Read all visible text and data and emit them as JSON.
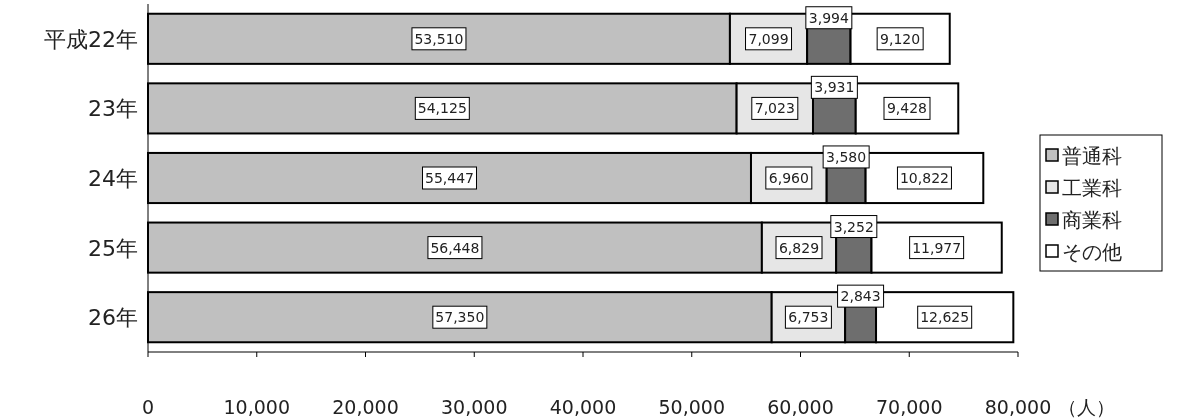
{
  "chart_data": {
    "type": "bar",
    "orientation": "horizontal",
    "stacked": true,
    "legend": "right",
    "xlabel": "（人）",
    "categories": [
      "平成22年",
      "23年",
      "24年",
      "25年",
      "26年"
    ],
    "series": [
      {
        "name": "普通科",
        "color": "#c0c0c0",
        "values": [
          53510,
          54125,
          55447,
          56448,
          57350
        ],
        "value_labels": [
          "53,510",
          "54,125",
          "55,447",
          "56,448",
          "57,350"
        ]
      },
      {
        "name": "工業科",
        "color": "#e6e6e6",
        "values": [
          7099,
          7023,
          6960,
          6829,
          6753
        ],
        "value_labels": [
          "7,099",
          "7,023",
          "6,960",
          "6,829",
          "6,753"
        ]
      },
      {
        "name": "商業科",
        "color": "#6e6e6e",
        "values": [
          3994,
          3931,
          3580,
          3252,
          2843
        ],
        "value_labels": [
          "3,994",
          "3,931",
          "3,580",
          "3,252",
          "2,843"
        ]
      },
      {
        "name": "その他",
        "color": "#ffffff",
        "values": [
          9120,
          9428,
          10822,
          11977,
          12625
        ],
        "value_labels": [
          "9,120",
          "9,428",
          "10,822",
          "11,977",
          "12,625"
        ]
      }
    ],
    "xlim": [
      0,
      80000
    ],
    "xticks": [
      0,
      {
        "value": 10000,
        "label": "10,000"
      },
      {
        "value": 20000,
        "label": "20,000"
      },
      {
        "value": 30000,
        "label": "30,000"
      },
      {
        "value": 40000,
        "label": "40,000"
      },
      {
        "value": 50000,
        "label": "50,000"
      },
      {
        "value": 60000,
        "label": "60,000"
      },
      {
        "value": 70000,
        "label": "70,000"
      },
      {
        "value": 80000,
        "label": "80,000"
      }
    ]
  }
}
